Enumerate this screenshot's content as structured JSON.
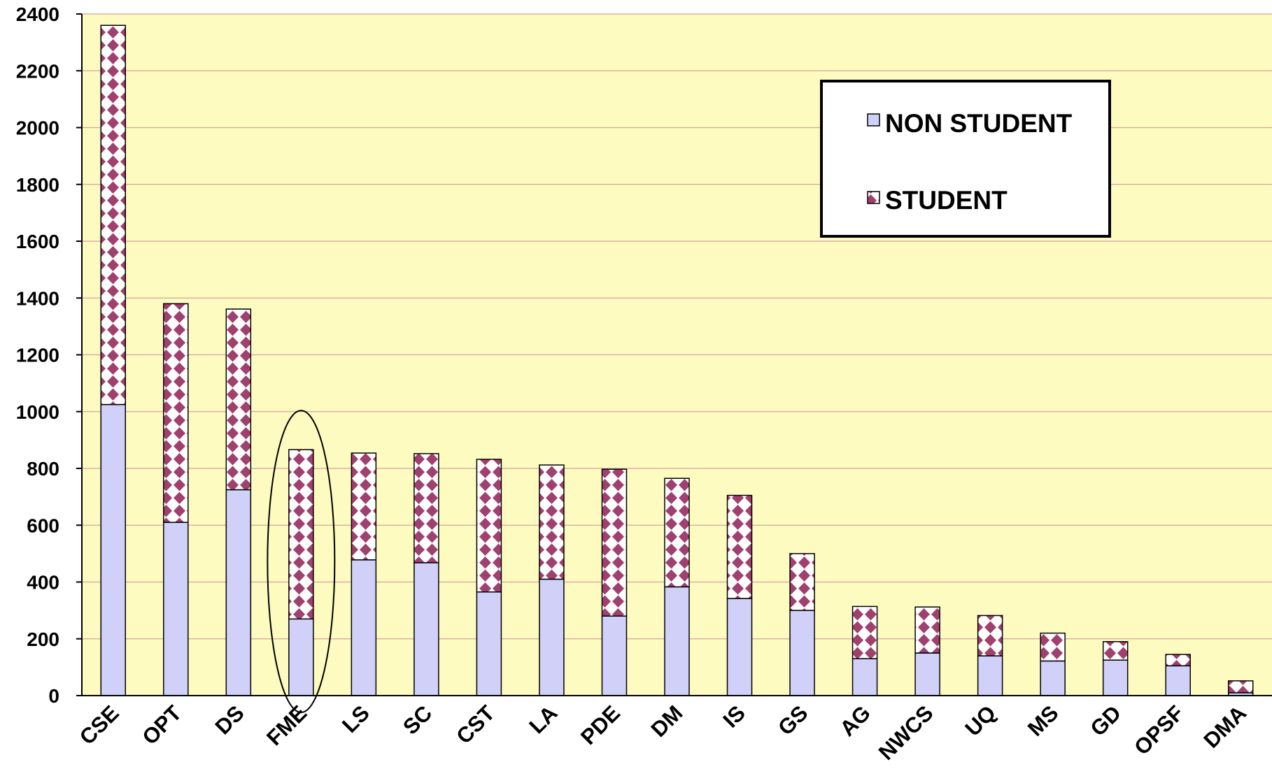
{
  "chart_data": {
    "type": "bar",
    "stacked": true,
    "title": "",
    "xlabel": "",
    "ylabel": "",
    "ylim": [
      0,
      2400
    ],
    "yticks": [
      0,
      200,
      400,
      600,
      800,
      1000,
      1200,
      1400,
      1600,
      1800,
      2000,
      2200,
      2400
    ],
    "grid": true,
    "legend_position": "top-right",
    "categories": [
      "CSE",
      "OPT",
      "DS",
      "FME",
      "LS",
      "SC",
      "CST",
      "LA",
      "PDE",
      "DM",
      "IS",
      "GS",
      "AG",
      "NWCS",
      "UQ",
      "MS",
      "GD",
      "OPSF",
      "DMA"
    ],
    "series": [
      {
        "name": "NON STUDENT",
        "color": "#d0d0f8",
        "pattern": "solid",
        "values": [
          1025,
          610,
          725,
          270,
          478,
          468,
          365,
          410,
          280,
          383,
          342,
          300,
          130,
          150,
          140,
          122,
          125,
          105,
          10
        ]
      },
      {
        "name": "STUDENT",
        "color": "#a0406e",
        "pattern": "diamond-check",
        "values": [
          1335,
          770,
          636,
          596,
          376,
          384,
          467,
          402,
          517,
          382,
          363,
          200,
          184,
          162,
          142,
          98,
          65,
          40,
          42
        ]
      }
    ],
    "highlighted_category": "FME",
    "colors": {
      "plot_background": "#fdfbc0",
      "gridline": "#d8a0a0",
      "outline": "#000000"
    }
  }
}
